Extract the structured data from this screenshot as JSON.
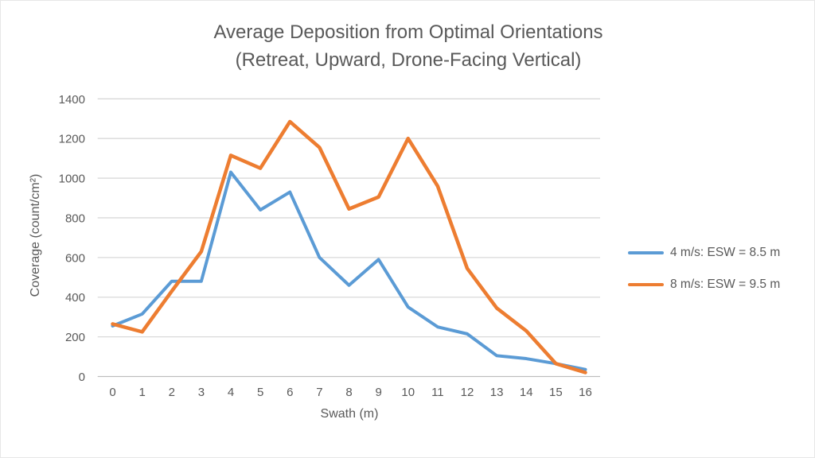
{
  "page": {
    "background": "#ffffff",
    "border_color": "#e7e7e7"
  },
  "title": {
    "line1": "Average Deposition from Optimal Orientations",
    "line2": "(Retreat, Upward, Drone-Facing Vertical)",
    "color": "#595959"
  },
  "chart_data": {
    "type": "line",
    "title": "Average Deposition from Optimal Orientations (Retreat, Upward, Drone-Facing Vertical)",
    "x": [
      0,
      1,
      2,
      3,
      4,
      5,
      6,
      7,
      8,
      9,
      10,
      11,
      12,
      13,
      14,
      15,
      16
    ],
    "xlabel": "Swath (m)",
    "ylabel": "Coverage (count/cm²)",
    "ylim": [
      0,
      1400
    ],
    "yticks": [
      0,
      200,
      400,
      600,
      800,
      1000,
      1200,
      1400
    ],
    "grid": "horizontal",
    "legend_position": "right",
    "colors": {
      "grid": "#d9d9d9",
      "axis": "#bfbfbf",
      "tick_text": "#595959"
    },
    "series": [
      {
        "name": "4 m/s: ESW = 8.5 m",
        "color": "#5b9bd5",
        "values": [
          255,
          315,
          480,
          480,
          1030,
          840,
          930,
          600,
          460,
          590,
          350,
          250,
          215,
          105,
          90,
          65,
          35
        ]
      },
      {
        "name": "8 m/s: ESW = 9.5 m",
        "color": "#ed7d31",
        "values": [
          265,
          225,
          430,
          630,
          1115,
          1050,
          1285,
          1155,
          845,
          905,
          1200,
          960,
          545,
          345,
          230,
          65,
          20
        ]
      }
    ]
  }
}
